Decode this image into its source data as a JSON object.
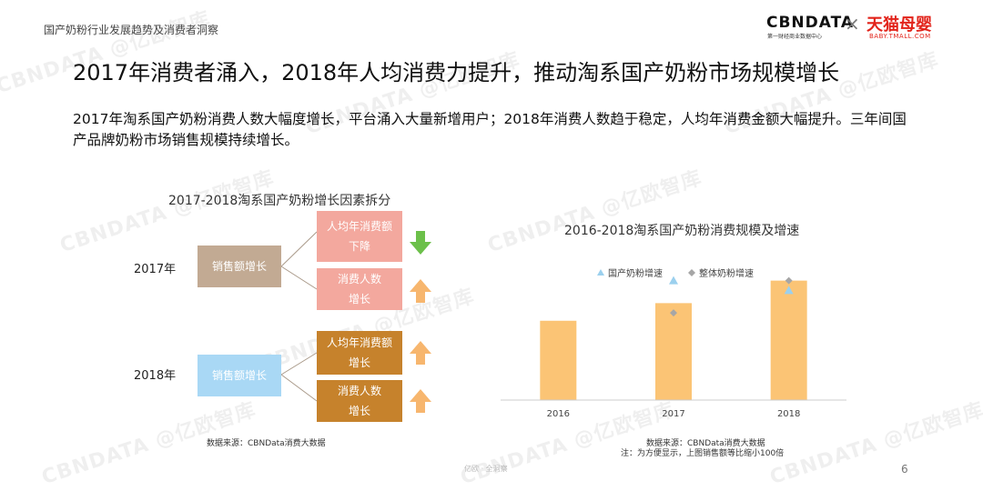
{
  "header": {
    "title": "国产奶粉行业发展趋势及消费者洞察",
    "logo_cbn": "CBNDATA",
    "logo_cbn_sub": "第一财经商业数据中心",
    "logo_sep": "×",
    "logo_tmall": "天猫母婴",
    "logo_tmall_sub": "BABY.TMALL.COM"
  },
  "main_title": "2017年消费者涌入，2018年人均消费力提升，推动淘系国产奶粉市场规模增长",
  "description": "2017年淘系国产奶粉消费人数大幅度增长，平台涌入大量新增用户；2018年消费人数趋于稳定，人均年消费金额大幅提升。三年间国产品牌奶粉市场销售规模持续增长。",
  "left_diagram": {
    "title": "2017-2018淘系国产奶粉增长因素拆分",
    "rows": [
      {
        "year": "2017年",
        "root": "销售额增长",
        "root_color": "#c2aa93",
        "factors": [
          {
            "line1": "人均年消费额",
            "line2": "下降",
            "color": "#f3a89e",
            "trend": "down",
            "arrow_color": "#6cc04a"
          },
          {
            "line1": "消费人数",
            "line2": "增长",
            "color": "#f3a89e",
            "trend": "up",
            "arrow_color": "#f7b66e"
          }
        ]
      },
      {
        "year": "2018年",
        "root": "销售额增长",
        "root_color": "#a9d8f5",
        "factors": [
          {
            "line1": "人均年消费额",
            "line2": "增长",
            "color": "#c6822c",
            "trend": "up",
            "arrow_color": "#f7b66e"
          },
          {
            "line1": "消费人数",
            "line2": "增长",
            "color": "#c6822c",
            "trend": "up",
            "arrow_color": "#f7b66e"
          }
        ]
      }
    ],
    "source": "数据来源：CBNData消费大数据"
  },
  "chart_data": {
    "type": "bar",
    "title": "2016-2018淘系国产奶粉消费规模及增速",
    "categories": [
      "2016",
      "2017",
      "2018"
    ],
    "values": [
      81,
      99,
      122
    ],
    "ylim": [
      0,
      130
    ],
    "bar_color": "#fbc475",
    "series": [
      {
        "name": "国产奶粉增速",
        "marker": "triangle",
        "color": "#9bd0ee",
        "values": [
          null,
          122,
          112
        ]
      },
      {
        "name": "整体奶粉增速",
        "marker": "diamond",
        "color": "#a6a6a6",
        "values": [
          null,
          89,
          122
        ]
      }
    ],
    "legend_position": "top",
    "grid": false,
    "source": "数据来源：CBNData消费大数据",
    "note": "注：为方便显示，上图销售额等比缩小100倍"
  },
  "footer": {
    "page_number": "6",
    "mark": "亿欧 · 全洞察"
  },
  "watermark": {
    "text1": "CBNDATA",
    "text2": "@亿欧智库"
  }
}
